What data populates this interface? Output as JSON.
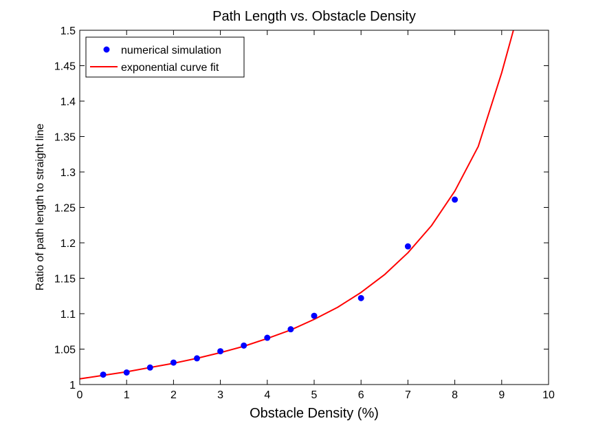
{
  "chart_data": {
    "type": "scatter",
    "title": "Path Length vs. Obstacle Density",
    "xlabel": "Obstacle Density (%)",
    "ylabel": "Ratio of path length to straight line",
    "xlim": [
      0,
      10
    ],
    "ylim": [
      1,
      1.5
    ],
    "x_ticks": [
      0,
      1,
      2,
      3,
      4,
      5,
      6,
      7,
      8,
      9,
      10
    ],
    "y_ticks": [
      1,
      1.05,
      1.1,
      1.15,
      1.2,
      1.25,
      1.3,
      1.35,
      1.4,
      1.45,
      1.5
    ],
    "x_tick_labels": [
      "0",
      "1",
      "2",
      "3",
      "4",
      "5",
      "6",
      "7",
      "8",
      "9",
      "10"
    ],
    "y_tick_labels": [
      "1",
      "1.05",
      "1.1",
      "1.15",
      "1.2",
      "1.25",
      "1.3",
      "1.35",
      "1.4",
      "1.45",
      "1.5"
    ],
    "grid": false,
    "legend_position": "top-left",
    "colors": {
      "points": "#0000ff",
      "curve": "#ff0000"
    },
    "series": [
      {
        "name": "numerical simulation",
        "kind": "scatter",
        "x": [
          0.5,
          1,
          1.5,
          2,
          2.5,
          3,
          3.5,
          4,
          4.5,
          5,
          6,
          7,
          8
        ],
        "y": [
          1.014,
          1.017,
          1.024,
          1.031,
          1.037,
          1.047,
          1.055,
          1.066,
          1.078,
          1.097,
          1.122,
          1.195,
          1.261
        ]
      },
      {
        "name": "exponential curve fit",
        "kind": "line",
        "x": [
          0,
          0.5,
          1,
          1.5,
          2,
          2.5,
          3,
          3.5,
          4,
          4.5,
          5,
          5.5,
          6,
          6.5,
          7,
          7.5,
          8,
          8.5,
          9,
          9.25
        ],
        "y": [
          1.008,
          1.013,
          1.018,
          1.024,
          1.03,
          1.037,
          1.045,
          1.054,
          1.065,
          1.077,
          1.092,
          1.109,
          1.13,
          1.155,
          1.186,
          1.224,
          1.273,
          1.336,
          1.44,
          1.5
        ]
      }
    ]
  }
}
